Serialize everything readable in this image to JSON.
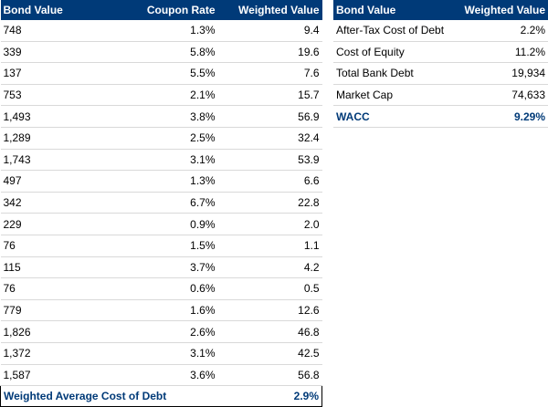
{
  "bond_table": {
    "headers": [
      "Bond Value",
      "Coupon Rate",
      "Weighted Value"
    ],
    "rows": [
      [
        "748",
        "1.3%",
        "9.4"
      ],
      [
        "339",
        "5.8%",
        "19.6"
      ],
      [
        "137",
        "5.5%",
        "7.6"
      ],
      [
        "753",
        "2.1%",
        "15.7"
      ],
      [
        "1,493",
        "3.8%",
        "56.9"
      ],
      [
        "1,289",
        "2.5%",
        "32.4"
      ],
      [
        "1,743",
        "3.1%",
        "53.9"
      ],
      [
        "497",
        "1.3%",
        "6.6"
      ],
      [
        "342",
        "6.7%",
        "22.8"
      ],
      [
        "229",
        "0.9%",
        "2.0"
      ],
      [
        "76",
        "1.5%",
        "1.1"
      ],
      [
        "115",
        "3.7%",
        "4.2"
      ],
      [
        "76",
        "0.6%",
        "0.5"
      ],
      [
        "779",
        "1.6%",
        "12.6"
      ],
      [
        "1,826",
        "2.6%",
        "46.8"
      ],
      [
        "1,372",
        "3.1%",
        "42.5"
      ],
      [
        "1,587",
        "3.6%",
        "56.8"
      ]
    ],
    "total_label": "Weighted Average Cost of Debt",
    "total_value": "2.9%"
  },
  "wacc_table": {
    "headers": [
      "Bond Value",
      "Weighted Value"
    ],
    "rows": [
      [
        "After-Tax Cost of Debt",
        "2.2%"
      ],
      [
        "Cost of Equity",
        "11.2%"
      ],
      [
        "Total Bank Debt",
        "19,934"
      ],
      [
        "Market Cap",
        "74,633"
      ],
      [
        "WACC",
        "9.29%"
      ]
    ]
  },
  "colors": {
    "header_bg": "#003a78",
    "header_text": "#ffffff",
    "accent_text": "#003a78",
    "row_border": "#d9d9d9"
  }
}
